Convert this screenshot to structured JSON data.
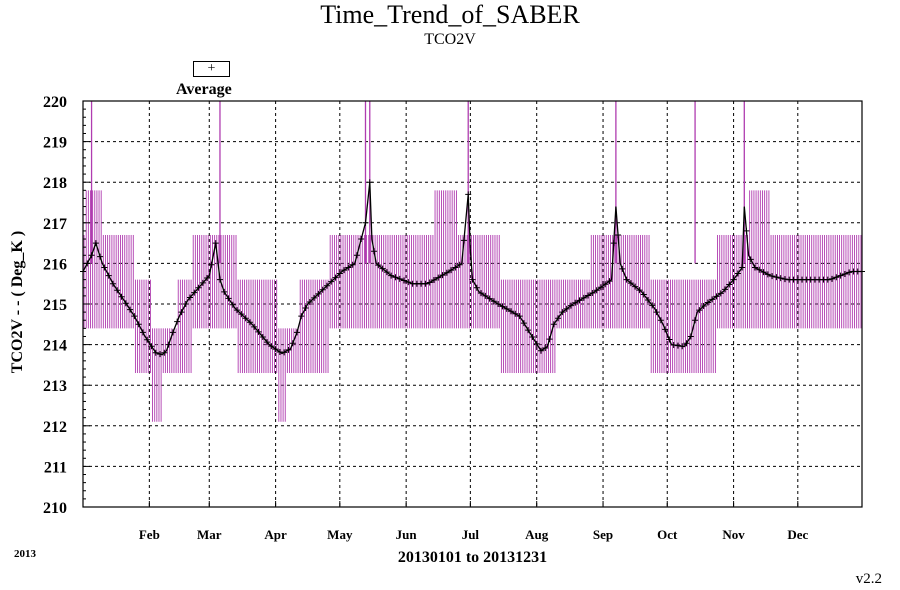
{
  "chart_data": {
    "type": "line",
    "title": "Time_Trend_of_SABER",
    "subtitle": "TCO2V",
    "ylabel": "TCO2V - - ( Deg_K )",
    "xlabel": "20130101 to 20131231",
    "year_label": "2013",
    "version": "v2.2",
    "legend": {
      "marker": "+",
      "label": "Average"
    },
    "ylim": [
      210,
      220
    ],
    "yticks": [
      "210",
      "211",
      "212",
      "213",
      "214",
      "215",
      "216",
      "217",
      "218",
      "219",
      "220"
    ],
    "xlim_days": [
      1,
      365
    ],
    "month_ticks": [
      {
        "label": "Feb",
        "day": 32
      },
      {
        "label": "Mar",
        "day": 60
      },
      {
        "label": "Apr",
        "day": 91
      },
      {
        "label": "May",
        "day": 121
      },
      {
        "label": "Jun",
        "day": 152
      },
      {
        "label": "Jul",
        "day": 182
      },
      {
        "label": "Aug",
        "day": 213
      },
      {
        "label": "Sep",
        "day": 244
      },
      {
        "label": "Oct",
        "day": 274
      },
      {
        "label": "Nov",
        "day": 305
      },
      {
        "label": "Dec",
        "day": 335
      }
    ],
    "grid": true,
    "series": [
      {
        "name": "Average",
        "marker": "+",
        "color": "#000000",
        "x_day": [
          1,
          5,
          7,
          10,
          15,
          20,
          25,
          30,
          35,
          38,
          40,
          43,
          46,
          50,
          55,
          60,
          63,
          65,
          67,
          72,
          80,
          88,
          94,
          98,
          101,
          103,
          106,
          110,
          116,
          122,
          128,
          133,
          135,
          136,
          138,
          145,
          155,
          162,
          172,
          178,
          181,
          182,
          183,
          186,
          195,
          205,
          212,
          215,
          218,
          221,
          225,
          230,
          240,
          248,
          250,
          252,
          255,
          262,
          268,
          272,
          276,
          282,
          285,
          288,
          292,
          300,
          305,
          309,
          310,
          312,
          315,
          322,
          330,
          340,
          350,
          360,
          365
        ],
        "y": [
          215.8,
          216.2,
          216.5,
          216.0,
          215.5,
          215.1,
          214.7,
          214.2,
          213.8,
          213.75,
          213.85,
          214.3,
          214.7,
          215.1,
          215.4,
          215.7,
          216.5,
          215.6,
          215.3,
          214.9,
          214.5,
          214.0,
          213.78,
          213.9,
          214.3,
          214.7,
          215.0,
          215.2,
          215.5,
          215.8,
          216.0,
          217.0,
          218.0,
          216.6,
          216.0,
          215.7,
          215.5,
          215.5,
          215.8,
          216.0,
          217.7,
          216.3,
          215.6,
          215.3,
          215.0,
          214.7,
          214.1,
          213.85,
          213.95,
          214.5,
          214.8,
          215.0,
          215.3,
          215.6,
          217.4,
          216.0,
          215.6,
          215.3,
          214.9,
          214.5,
          214.0,
          213.95,
          214.2,
          214.8,
          215.0,
          215.3,
          215.6,
          215.9,
          217.4,
          216.2,
          215.9,
          215.7,
          215.6,
          215.6,
          215.6,
          215.8,
          215.8
        ]
      }
    ],
    "range_bands": {
      "color": "#b03cb0",
      "segments": [
        {
          "d0": 1,
          "d1": 2,
          "lo": 214.4,
          "hi": 216.7
        },
        {
          "d0": 2,
          "d1": 7,
          "lo": 214.4,
          "hi": 217.8
        },
        {
          "d0": 7,
          "d1": 10,
          "lo": 214.4,
          "hi": 217.8
        },
        {
          "d0": 10,
          "d1": 25,
          "lo": 214.4,
          "hi": 216.7
        },
        {
          "d0": 25,
          "d1": 33,
          "lo": 213.3,
          "hi": 215.6
        },
        {
          "d0": 33,
          "d1": 38,
          "lo": 212.1,
          "hi": 214.4
        },
        {
          "d0": 38,
          "d1": 45,
          "lo": 213.3,
          "hi": 214.4
        },
        {
          "d0": 45,
          "d1": 52,
          "lo": 213.3,
          "hi": 215.6
        },
        {
          "d0": 52,
          "d1": 73,
          "lo": 214.4,
          "hi": 216.7
        },
        {
          "d0": 73,
          "d1": 92,
          "lo": 213.3,
          "hi": 215.6
        },
        {
          "d0": 92,
          "d1": 96,
          "lo": 212.1,
          "hi": 214.4
        },
        {
          "d0": 96,
          "d1": 102,
          "lo": 213.3,
          "hi": 214.4
        },
        {
          "d0": 102,
          "d1": 116,
          "lo": 213.3,
          "hi": 215.6
        },
        {
          "d0": 116,
          "d1": 165,
          "lo": 214.4,
          "hi": 216.7
        },
        {
          "d0": 165,
          "d1": 176,
          "lo": 214.4,
          "hi": 217.8
        },
        {
          "d0": 176,
          "d1": 196,
          "lo": 214.4,
          "hi": 216.7
        },
        {
          "d0": 196,
          "d1": 210,
          "lo": 213.3,
          "hi": 215.6
        },
        {
          "d0": 210,
          "d1": 222,
          "lo": 213.3,
          "hi": 215.6
        },
        {
          "d0": 222,
          "d1": 238,
          "lo": 214.4,
          "hi": 215.6
        },
        {
          "d0": 238,
          "d1": 266,
          "lo": 214.4,
          "hi": 216.7
        },
        {
          "d0": 266,
          "d1": 297,
          "lo": 213.3,
          "hi": 215.6
        },
        {
          "d0": 297,
          "d1": 312,
          "lo": 214.4,
          "hi": 216.7
        },
        {
          "d0": 312,
          "d1": 322,
          "lo": 214.4,
          "hi": 217.8
        },
        {
          "d0": 322,
          "d1": 365,
          "lo": 214.4,
          "hi": 216.7
        }
      ],
      "spikes": [
        {
          "day": 5,
          "hi": 220
        },
        {
          "day": 65,
          "hi": 220
        },
        {
          "day": 133,
          "hi": 220
        },
        {
          "day": 135,
          "hi": 220
        },
        {
          "day": 181,
          "hi": 220
        },
        {
          "day": 250,
          "hi": 220
        },
        {
          "day": 287,
          "hi": 220
        },
        {
          "day": 310,
          "hi": 220
        }
      ]
    }
  }
}
